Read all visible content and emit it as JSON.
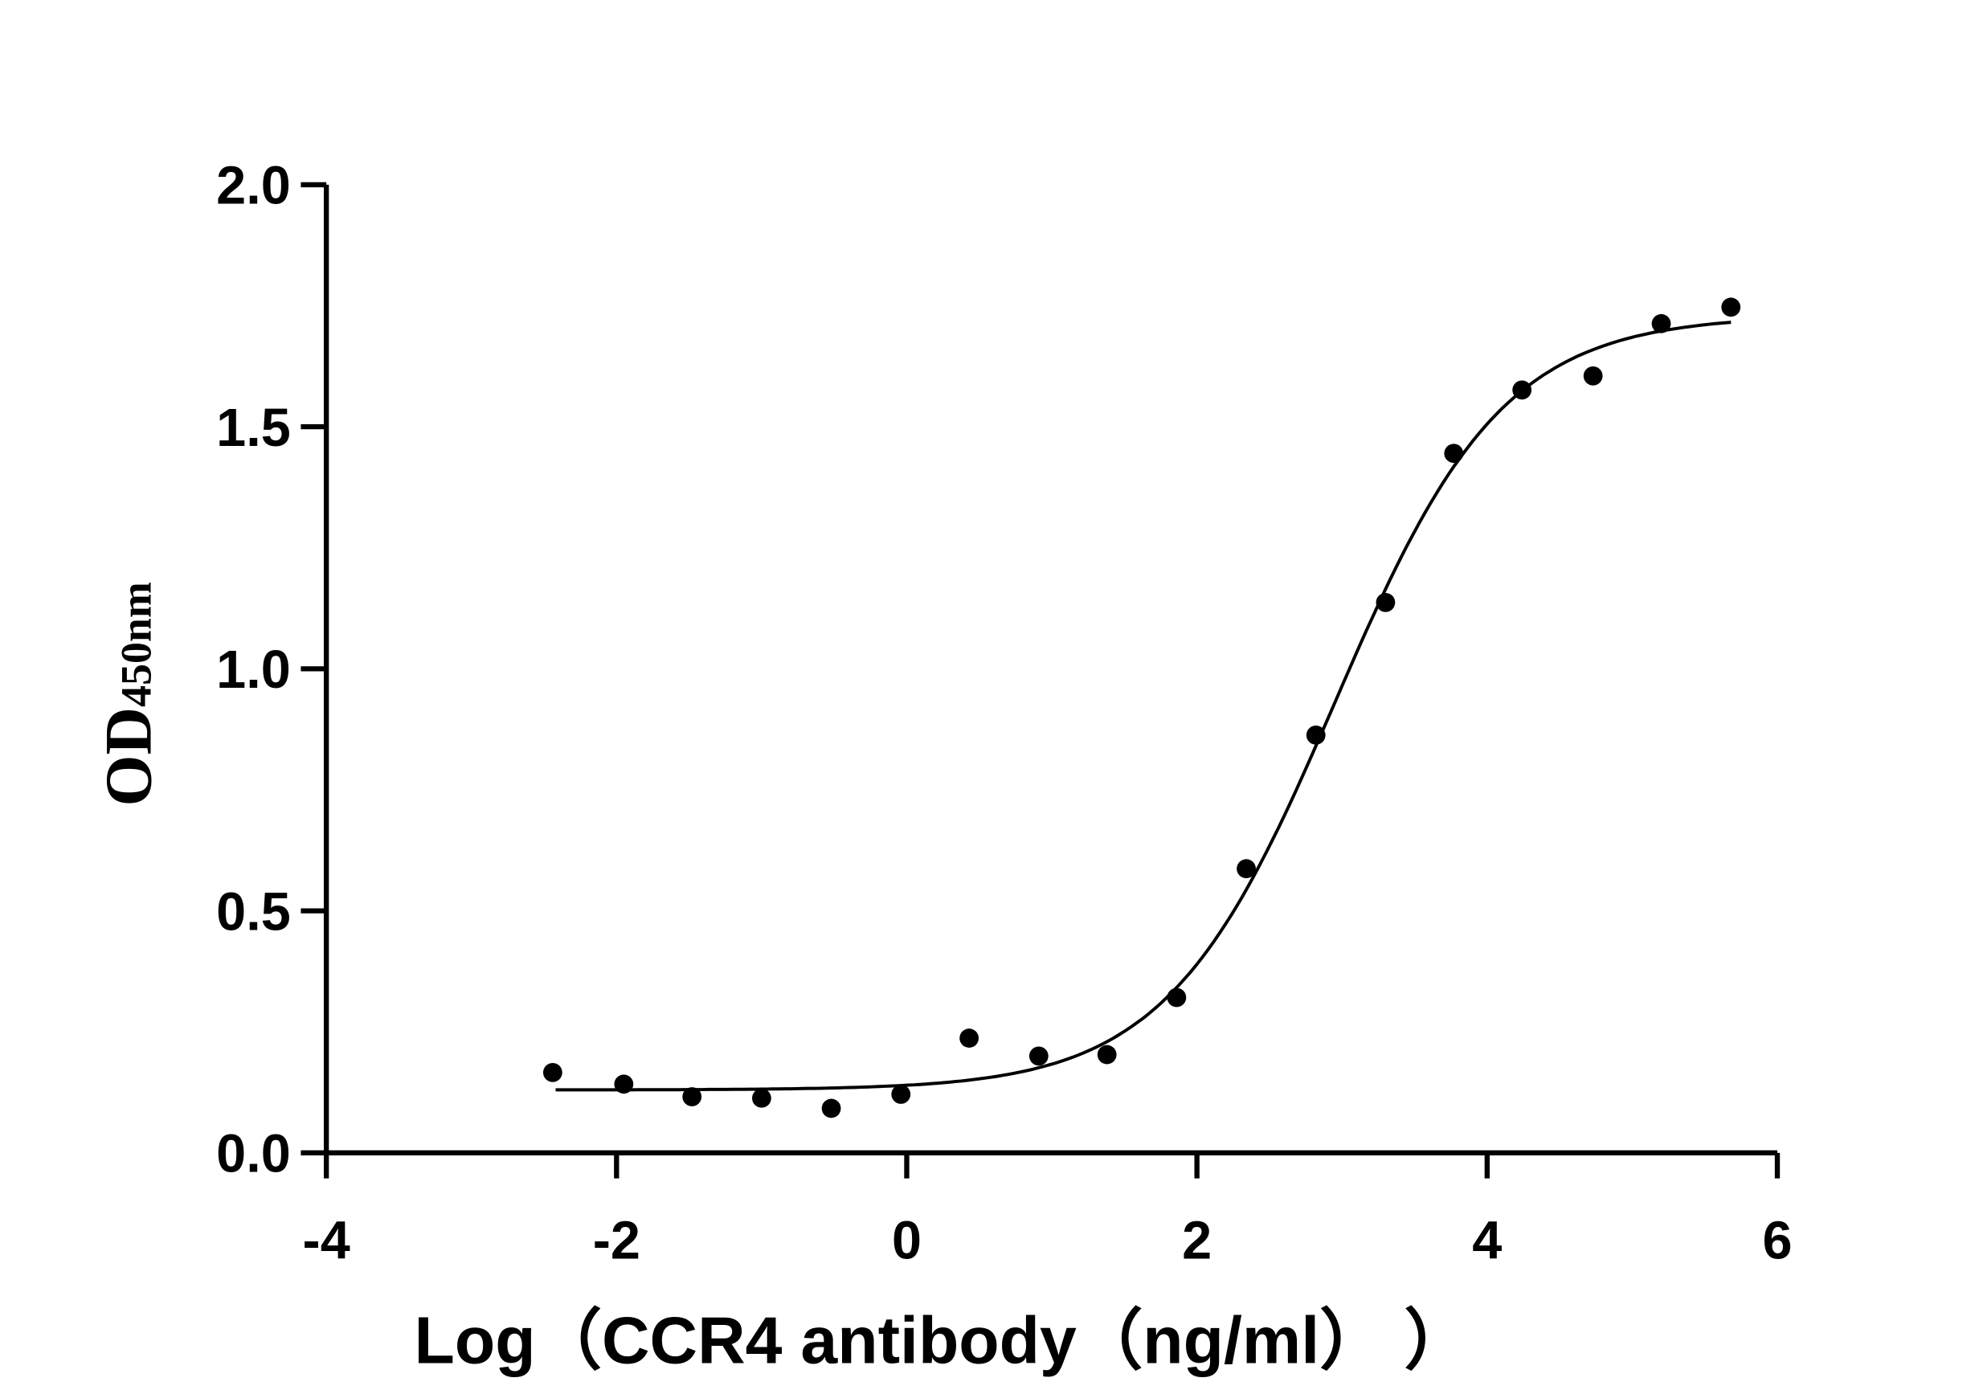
{
  "chart_data": {
    "type": "scatter",
    "title": "",
    "xlabel": "Log（CCR4 antibody（ng/ml）  ）",
    "ylabel_main": "OD",
    "ylabel_sub": "450nm",
    "xlim": [
      -4,
      6
    ],
    "ylim": [
      0,
      2.0
    ],
    "xticks": [
      "-4",
      "-2",
      "0",
      "2",
      "4",
      "6"
    ],
    "yticks": [
      "0.0",
      "0.5",
      "1.0",
      "1.5",
      "2.0"
    ],
    "grid": false,
    "curve": "sigmoidal dose-response fit",
    "points": [
      {
        "x": -2.44,
        "y": 0.166
      },
      {
        "x": -1.95,
        "y": 0.142
      },
      {
        "x": -1.48,
        "y": 0.116
      },
      {
        "x": -1.0,
        "y": 0.113
      },
      {
        "x": -0.52,
        "y": 0.092
      },
      {
        "x": -0.04,
        "y": 0.121
      },
      {
        "x": 0.43,
        "y": 0.237
      },
      {
        "x": 0.91,
        "y": 0.2
      },
      {
        "x": 1.38,
        "y": 0.203
      },
      {
        "x": 1.86,
        "y": 0.321
      },
      {
        "x": 2.34,
        "y": 0.587
      },
      {
        "x": 2.82,
        "y": 0.863
      },
      {
        "x": 3.3,
        "y": 1.137
      },
      {
        "x": 3.77,
        "y": 1.445
      },
      {
        "x": 4.24,
        "y": 1.576
      },
      {
        "x": 4.73,
        "y": 1.605
      },
      {
        "x": 5.2,
        "y": 1.713
      },
      {
        "x": 5.68,
        "y": 1.747
      }
    ],
    "color": "#000000"
  }
}
